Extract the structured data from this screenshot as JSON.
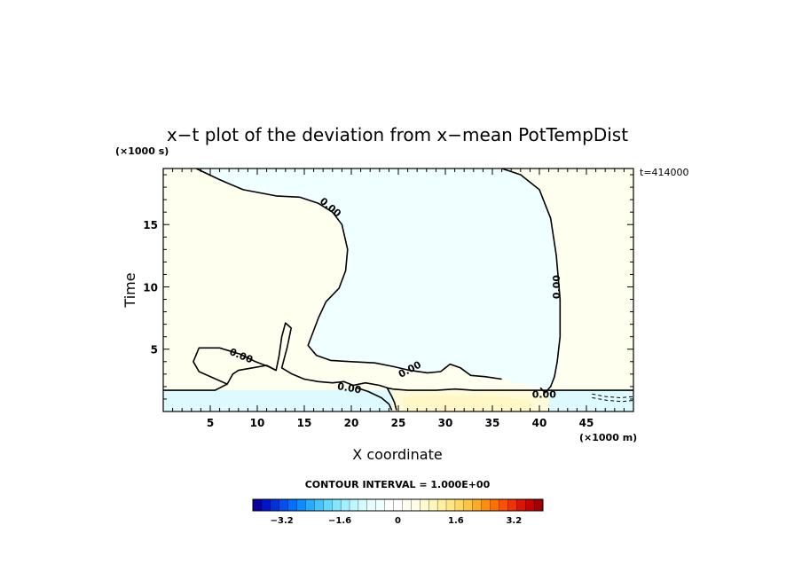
{
  "chart_data": {
    "type": "heatmap",
    "title": "x−t plot of the deviation from x−mean PotTempDist",
    "xlabel": "X coordinate",
    "ylabel": "Time",
    "x_unit": "(×1000 m)",
    "y_unit": "(×1000 s)",
    "time_stamp": "t=414000",
    "xlim": [
      0,
      50
    ],
    "ylim": [
      0,
      19.5
    ],
    "x_ticks": [
      5,
      10,
      15,
      20,
      25,
      30,
      35,
      40,
      45
    ],
    "y_ticks": [
      5,
      10,
      15
    ],
    "contour_interval": "CONTOUR INTERVAL = 1.000E+00",
    "contour_label": "0.00",
    "colorbar": {
      "range": [
        -4,
        4
      ],
      "tick_values": [
        -3.2,
        -1.6,
        0,
        1.6,
        3.2
      ],
      "tick_labels": [
        "−3.2",
        "−1.6",
        "0",
        "1.6",
        "3.2"
      ],
      "colors": [
        "#0a00a0",
        "#0014c8",
        "#0032dc",
        "#0050f0",
        "#006eff",
        "#0a8cff",
        "#28aaff",
        "#46c3ff",
        "#64d7ff",
        "#82e6ff",
        "#a0f0ff",
        "#bef5ff",
        "#d2faff",
        "#e6fdff",
        "#f0ffff",
        "#ffffff",
        "#ffffff",
        "#fffff0",
        "#fffde6",
        "#fffad2",
        "#fff5be",
        "#fff0a0",
        "#ffe682",
        "#ffd764",
        "#ffc346",
        "#ffaa28",
        "#ff8c0a",
        "#ff6e00",
        "#ff5000",
        "#f03200",
        "#dc1400",
        "#c80000",
        "#a00000"
      ]
    },
    "regions": [
      {
        "name": "background",
        "sign": "positive",
        "color": "#fffff0"
      },
      {
        "name": "upper-cold-region",
        "sign": "negative",
        "color": "#f0ffff"
      },
      {
        "name": "lower-cold-strip",
        "sign": "negative",
        "color": "#dcfaff"
      },
      {
        "name": "lower-warm-strip",
        "sign": "positive",
        "color": "#fffbd8"
      },
      {
        "name": "bottom-warm-patch",
        "sign": "positive",
        "color": "#fff5be"
      }
    ],
    "contour_labels": [
      {
        "text": "0.00",
        "x": 17.8,
        "y": 16.4,
        "angle": 40
      },
      {
        "text": "0.00",
        "x": 8.3,
        "y": 4.5,
        "angle": 22
      },
      {
        "text": "0.00",
        "x": 41.8,
        "y": 10.0,
        "angle": -90
      },
      {
        "text": "0.00",
        "x": 26.2,
        "y": 3.4,
        "angle": -28
      },
      {
        "text": "0.00",
        "x": 19.8,
        "y": 1.9,
        "angle": 10
      },
      {
        "text": "0.00",
        "x": 40.5,
        "y": 1.4,
        "angle": 0
      }
    ],
    "contours": [
      {
        "name": "zero-contour-upper-left",
        "style": "solid",
        "points": [
          [
            3.5,
            19.5
          ],
          [
            6,
            18.6
          ],
          [
            8.5,
            17.8
          ],
          [
            12,
            17.3
          ],
          [
            14.5,
            17.2
          ],
          [
            16.5,
            16.7
          ],
          [
            18,
            16
          ],
          [
            19,
            15
          ],
          [
            19.6,
            13
          ],
          [
            19.4,
            11.3
          ],
          [
            18.7,
            9.9
          ],
          [
            17.3,
            8.8
          ],
          [
            16.5,
            7.5
          ],
          [
            15.9,
            6.3
          ],
          [
            15.4,
            5.3
          ],
          [
            16.3,
            4.5
          ],
          [
            17.8,
            4.1
          ],
          [
            20,
            4
          ],
          [
            22.5,
            3.9
          ],
          [
            24.5,
            3.6
          ],
          [
            26.2,
            3.3
          ],
          [
            28.1,
            3.1
          ],
          [
            29.5,
            3.2
          ],
          [
            30.5,
            3.8
          ],
          [
            31.6,
            3.5
          ],
          [
            32.7,
            2.9
          ],
          [
            34.2,
            2.8
          ],
          [
            36,
            2.6
          ]
        ]
      },
      {
        "name": "zero-contour-right",
        "style": "solid",
        "points": [
          [
            36,
            19.5
          ],
          [
            38,
            19
          ],
          [
            40,
            17.8
          ],
          [
            41.2,
            15.5
          ],
          [
            41.8,
            12.5
          ],
          [
            42.2,
            9
          ],
          [
            42.2,
            6
          ],
          [
            41.9,
            4
          ],
          [
            41.6,
            2.8
          ],
          [
            41.2,
            2
          ],
          [
            40.6,
            1.5
          ],
          [
            40.1,
            1.9
          ]
        ]
      },
      {
        "name": "zero-contour-lower-left",
        "style": "solid",
        "points": [
          [
            0,
            1.7
          ],
          [
            5.5,
            1.7
          ],
          [
            6.8,
            2.2
          ],
          [
            7.4,
            3
          ],
          [
            8,
            3.3
          ],
          [
            9.5,
            3.5
          ],
          [
            11,
            3.7
          ],
          [
            12,
            3.3
          ],
          [
            12.3,
            4.4
          ],
          [
            12.6,
            6
          ],
          [
            13,
            7.1
          ],
          [
            13.6,
            6.7
          ],
          [
            13.2,
            5.2
          ],
          [
            12.6,
            3.5
          ],
          [
            13.7,
            3
          ],
          [
            15,
            2.6
          ],
          [
            16.5,
            2.4
          ],
          [
            18,
            2.3
          ],
          [
            19.2,
            2.4
          ],
          [
            20.2,
            2.1
          ],
          [
            21.5,
            2.3
          ],
          [
            23,
            2.1
          ],
          [
            23.8,
            1.9
          ],
          [
            24.4,
            1.8
          ]
        ]
      },
      {
        "name": "zero-contour-bump-left",
        "style": "solid",
        "points": [
          [
            6.8,
            2.2
          ],
          [
            3.8,
            3.2
          ],
          [
            3.2,
            4
          ],
          [
            3.8,
            5.1
          ],
          [
            6,
            5.1
          ],
          [
            8.2,
            4.6
          ],
          [
            9.8,
            4
          ],
          [
            11.2,
            3.6
          ],
          [
            12,
            3.3
          ]
        ]
      },
      {
        "name": "zero-contour-warm-strip-top",
        "style": "solid",
        "points": [
          [
            24.4,
            1.8
          ],
          [
            26,
            1.7
          ],
          [
            29,
            1.7
          ],
          [
            31,
            1.8
          ],
          [
            33,
            1.7
          ],
          [
            36,
            1.7
          ],
          [
            40,
            1.7
          ],
          [
            45,
            1.7
          ],
          [
            50,
            1.7
          ]
        ]
      },
      {
        "name": "zero-contour-lower-dip",
        "style": "solid",
        "points": [
          [
            20.6,
            1.9
          ],
          [
            21.8,
            1.6
          ],
          [
            23.2,
            1.1
          ],
          [
            24,
            0.6
          ],
          [
            24.3,
            0.1
          ]
        ]
      },
      {
        "name": "zero-contour-lower-dip-2",
        "style": "solid",
        "points": [
          [
            23.8,
            1.9
          ],
          [
            24.3,
            1.2
          ],
          [
            24.6,
            0.7
          ],
          [
            24.8,
            0.1
          ]
        ]
      },
      {
        "name": "dashed-contour-right",
        "style": "dashed",
        "points": [
          [
            45.6,
            1.4
          ],
          [
            47,
            1.2
          ],
          [
            48.6,
            1.1
          ],
          [
            50,
            1.2
          ]
        ]
      },
      {
        "name": "dashed-contour-right-lower",
        "style": "dashed",
        "points": [
          [
            45.6,
            1.1
          ],
          [
            47.2,
            0.9
          ],
          [
            48.8,
            0.8
          ],
          [
            50,
            0.9
          ]
        ]
      }
    ]
  }
}
